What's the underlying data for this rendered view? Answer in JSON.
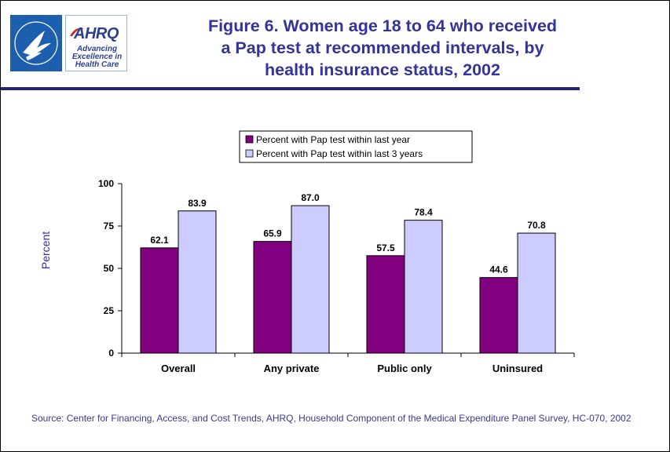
{
  "header": {
    "title_lines": [
      "Figure 6. Women age 18 to 64 who received",
      "a Pap test at recommended intervals, by",
      "health insurance status, 2002"
    ],
    "logo_ahrq_text": "AHRQ",
    "logo_ahrq_tagline_lines": [
      "Advancing",
      "Excellence in",
      "Health Care"
    ],
    "logo_hhs_seal_text": "DEPARTMENT OF HEALTH & HUMAN SERVICES USA"
  },
  "source_note": "Source: Center for Financing, Access, and Cost Trends, AHRQ, Household Component of the Medical Expenditure Panel Survey, HC-070, 2002",
  "colors": {
    "series_1": "#800080",
    "series_2": "#ccccff",
    "title": "#33339a",
    "divider": "#23237a"
  },
  "chart_data": {
    "type": "bar",
    "title": "",
    "xlabel": "",
    "ylabel": "Percent",
    "ylim": [
      0,
      100
    ],
    "yticks": [
      0,
      25,
      50,
      75,
      100
    ],
    "grid": false,
    "legend_position": "top",
    "categories": [
      "Overall",
      "Any private",
      "Public only",
      "Uninsured"
    ],
    "series": [
      {
        "name": "Percent with Pap test within last year",
        "values": [
          62.1,
          65.9,
          57.5,
          44.6
        ],
        "labels": [
          "62.1",
          "65.9",
          "57.5",
          "44.6"
        ]
      },
      {
        "name": "Percent with Pap test within last 3 years",
        "values": [
          83.9,
          87.0,
          78.4,
          70.8
        ],
        "labels": [
          "83.9",
          "87.0",
          "78.4",
          "70.8"
        ]
      }
    ]
  }
}
